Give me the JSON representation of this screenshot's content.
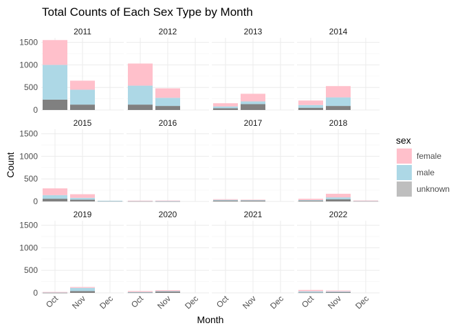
{
  "chart_data": {
    "type": "bar",
    "stacked": true,
    "title": "Total Counts of Each Sex Type by Month",
    "xlabel": "Month",
    "ylabel": "Count",
    "ylim": [
      0,
      1600
    ],
    "yticks": [
      0,
      500,
      1000,
      1500
    ],
    "categories": [
      "Oct",
      "Nov",
      "Dec"
    ],
    "legend": {
      "title": "sex",
      "position": "right",
      "entries": [
        "female",
        "male",
        "unknown"
      ]
    },
    "colors": {
      "female": "#ffc0cb",
      "male": "#add8e6",
      "unknown": "#808080",
      "unknown_key": "#bebebe"
    },
    "grid": true,
    "facets": [
      {
        "label": "2011",
        "values": {
          "unknown": [
            230,
            120,
            0
          ],
          "male": [
            770,
            330,
            0
          ],
          "female": [
            550,
            200,
            0
          ]
        }
      },
      {
        "label": "2012",
        "values": {
          "unknown": [
            120,
            90,
            0
          ],
          "male": [
            420,
            180,
            0
          ],
          "female": [
            490,
            210,
            0
          ]
        }
      },
      {
        "label": "2013",
        "values": {
          "unknown": [
            40,
            130,
            0
          ],
          "male": [
            40,
            60,
            0
          ],
          "female": [
            70,
            170,
            0
          ]
        }
      },
      {
        "label": "2014",
        "values": {
          "unknown": [
            50,
            90,
            0
          ],
          "male": [
            60,
            190,
            0
          ],
          "female": [
            100,
            250,
            0
          ]
        }
      },
      {
        "label": "2015",
        "values": {
          "unknown": [
            60,
            40,
            10
          ],
          "male": [
            80,
            40,
            5
          ],
          "female": [
            150,
            80,
            0
          ]
        }
      },
      {
        "label": "2016",
        "values": {
          "unknown": [
            8,
            5,
            0
          ],
          "male": [
            5,
            5,
            0
          ],
          "female": [
            5,
            10,
            0
          ]
        }
      },
      {
        "label": "2017",
        "values": {
          "unknown": [
            20,
            20,
            0
          ],
          "male": [
            15,
            10,
            0
          ],
          "female": [
            15,
            10,
            0
          ]
        }
      },
      {
        "label": "2018",
        "values": {
          "unknown": [
            20,
            50,
            10
          ],
          "male": [
            10,
            40,
            5
          ],
          "female": [
            30,
            80,
            5
          ]
        }
      },
      {
        "label": "2019",
        "values": {
          "unknown": [
            5,
            40,
            0
          ],
          "male": [
            10,
            70,
            0
          ],
          "female": [
            5,
            20,
            0
          ]
        }
      },
      {
        "label": "2020",
        "values": {
          "unknown": [
            10,
            30,
            0
          ],
          "male": [
            10,
            10,
            0
          ],
          "female": [
            20,
            20,
            0
          ]
        }
      },
      {
        "label": "2021",
        "values": {
          "unknown": [
            0,
            0,
            0
          ],
          "male": [
            0,
            0,
            0
          ],
          "female": [
            0,
            0,
            0
          ]
        }
      },
      {
        "label": "2022",
        "values": {
          "unknown": [
            10,
            15,
            0
          ],
          "male": [
            25,
            15,
            0
          ],
          "female": [
            30,
            20,
            0
          ]
        }
      }
    ]
  }
}
